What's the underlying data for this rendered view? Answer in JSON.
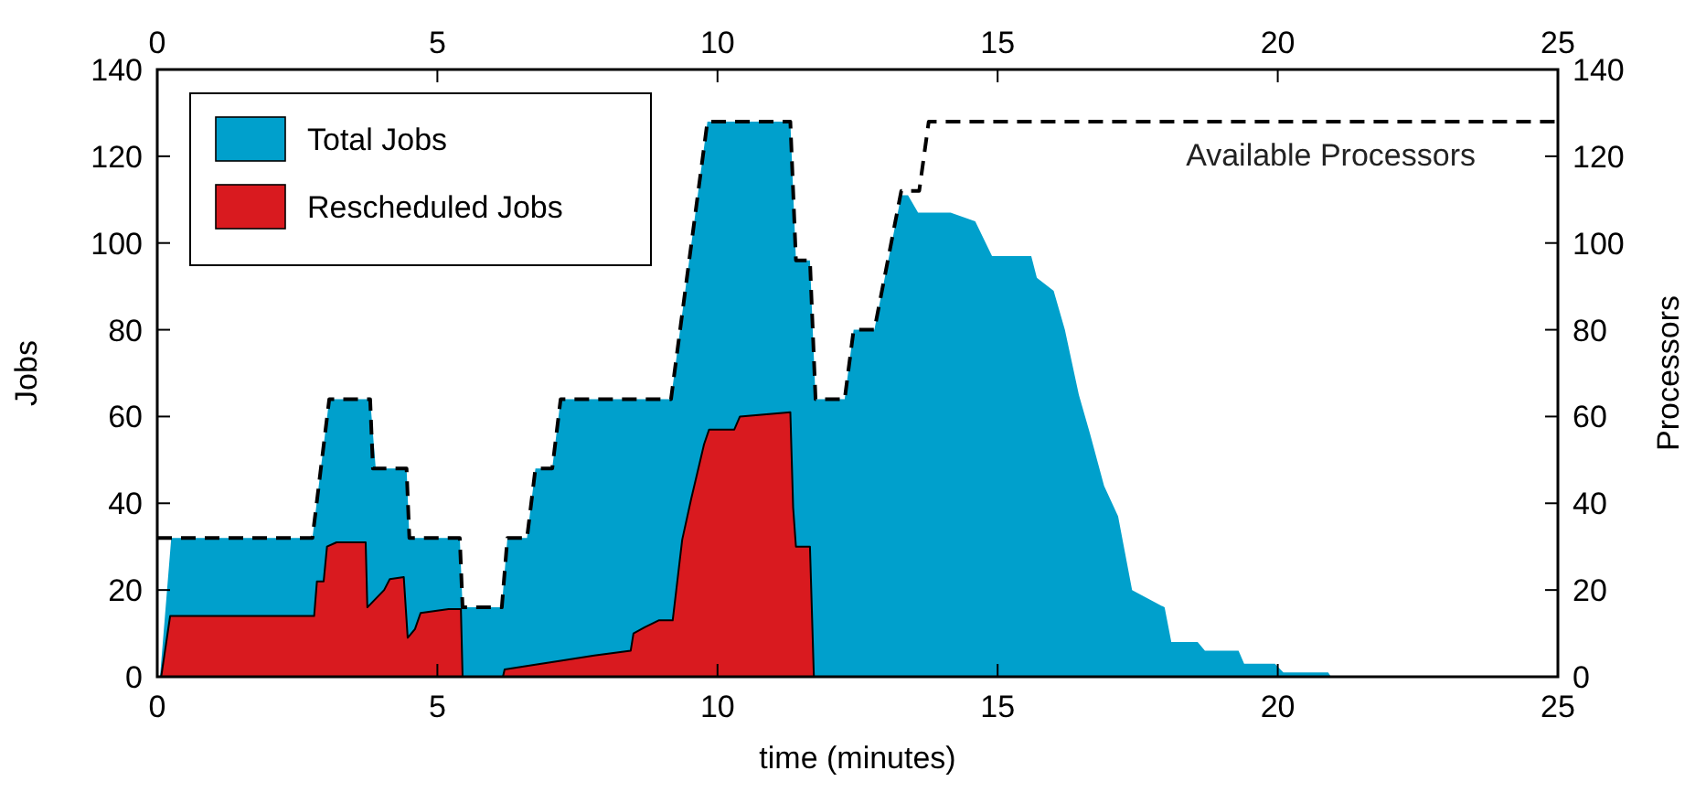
{
  "chart_data": {
    "type": "area",
    "xlabel": "time (minutes)",
    "ylabel": "Jobs",
    "y2label": "Processors",
    "xlim": [
      0,
      25
    ],
    "xticks": [
      0,
      5,
      10,
      15,
      20,
      25
    ],
    "x2lim": [
      0,
      25
    ],
    "x2ticks": [
      0,
      5,
      10,
      15,
      20,
      25
    ],
    "ylim": [
      0,
      140
    ],
    "yticks": [
      0,
      20,
      40,
      60,
      80,
      100,
      120,
      140
    ],
    "y2lim": [
      0,
      140
    ],
    "y2ticks": [
      0,
      20,
      40,
      60,
      80,
      100,
      120,
      140
    ],
    "legend": "top left",
    "grid": false,
    "series": [
      {
        "name": "Total Jobs",
        "type": "area",
        "color": "#00a0cc",
        "x": [
          0.05,
          0.25,
          2.77,
          3.07,
          3.8,
          3.9,
          4.45,
          4.5,
          5.4,
          5.45,
          6.15,
          6.25,
          6.6,
          6.75,
          7.05,
          7.2,
          9.17,
          9.82,
          11.3,
          11.4,
          11.65,
          11.75,
          12.27,
          12.43,
          12.8,
          13.28,
          13.4,
          13.58,
          14.16,
          14.6,
          14.9,
          15.6,
          15.7,
          16.0,
          16.2,
          16.45,
          16.65,
          16.9,
          17.15,
          17.4,
          17.98,
          18.1,
          18.57,
          18.7,
          19.3,
          19.4,
          19.95,
          20.1,
          20.9,
          20.95
        ],
        "values": [
          0,
          32,
          32,
          64,
          64,
          48,
          48,
          32,
          32,
          16,
          16,
          32,
          32,
          48,
          48,
          64,
          64,
          128,
          128,
          96,
          96,
          64,
          64,
          80,
          80,
          111,
          111,
          107,
          107,
          105,
          97,
          97,
          92,
          89,
          80,
          65,
          56,
          44,
          37,
          20,
          16,
          8,
          8,
          6,
          6,
          3,
          3,
          1,
          1,
          0
        ]
      },
      {
        "name": "Rescheduled Jobs",
        "type": "area",
        "color": "#d91a1f",
        "x": [
          0.07,
          0.23,
          2.8,
          2.85,
          2.97,
          3.03,
          3.2,
          3.72,
          3.75,
          4.05,
          4.15,
          4.4,
          4.47,
          4.6,
          4.7,
          5.2,
          5.42,
          5.45,
          6.17,
          6.2,
          6.75,
          7.2,
          7.8,
          8.45,
          8.5,
          8.7,
          8.95,
          9.2,
          9.37,
          9.53,
          9.76,
          9.85,
          10.3,
          10.4,
          11.3,
          11.35,
          11.4,
          11.65,
          11.72
        ],
        "values": [
          0,
          14,
          14,
          22,
          22,
          30,
          31,
          31,
          16,
          20,
          22.5,
          23,
          9,
          11,
          14.7,
          15.6,
          15.6,
          0,
          0,
          1.7,
          2.8,
          3.7,
          4.9,
          6,
          10,
          11.4,
          13,
          13,
          31.6,
          41,
          53.6,
          57,
          57,
          60,
          61,
          39,
          30,
          30,
          0
        ]
      },
      {
        "name": "Available Processors",
        "type": "line",
        "axis": "y2",
        "color": "#000000",
        "line_style": "dashed",
        "marker": "none",
        "x": [
          0,
          2.77,
          3.07,
          3.8,
          3.85,
          4.45,
          4.5,
          5.4,
          5.45,
          6.15,
          6.25,
          6.6,
          6.75,
          7.05,
          7.2,
          9.17,
          9.82,
          11.3,
          11.4,
          11.65,
          11.75,
          12.27,
          12.43,
          12.8,
          13.28,
          13.6,
          13.77,
          25
        ],
        "values": [
          32,
          32,
          64,
          64,
          48,
          48,
          32,
          32,
          16,
          16,
          32,
          32,
          48,
          48,
          64,
          64,
          128,
          128,
          96,
          96,
          64,
          64,
          80,
          80,
          112,
          112,
          128,
          128
        ]
      }
    ]
  }
}
